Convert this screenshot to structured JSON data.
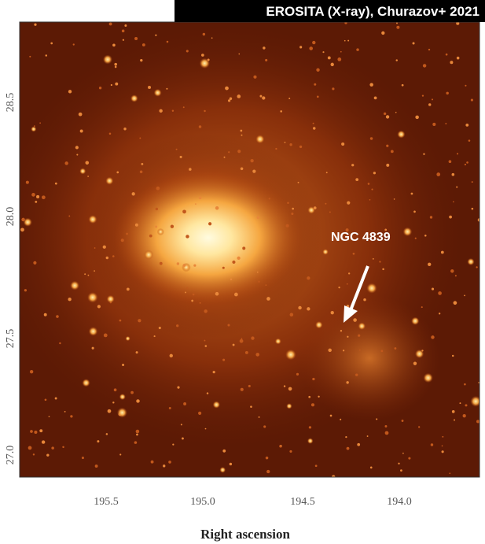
{
  "header": {
    "credit": "EROSITA (X-ray), Churazov+ 2021"
  },
  "image": {
    "annotation": "NGC 4839"
  },
  "axes": {
    "x_label": "Right ascension",
    "x_ticks": [
      "195.5",
      "195.0",
      "194.5",
      "194.0"
    ],
    "y_ticks": [
      "28.5",
      "28.0",
      "27.5",
      "27.0"
    ]
  }
}
